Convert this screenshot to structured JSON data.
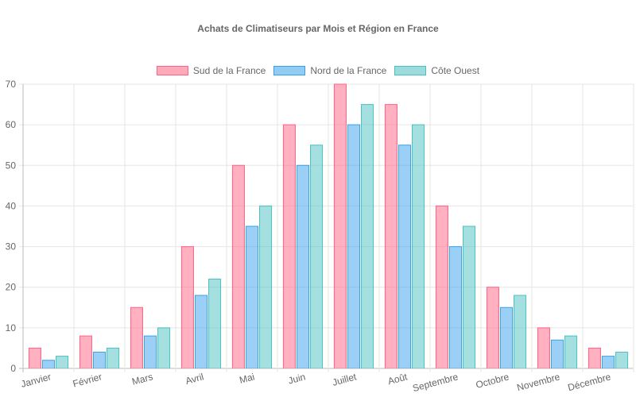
{
  "chart_data": {
    "type": "bar",
    "title": "Achats de Climatiseurs par Mois et Région en France",
    "categories": [
      "Janvier",
      "Février",
      "Mars",
      "Avril",
      "Mai",
      "Juin",
      "Juillet",
      "Août",
      "Septembre",
      "Octobre",
      "Novembre",
      "Décembre"
    ],
    "series": [
      {
        "name": "Sud de la France",
        "color": "#ff6384",
        "values": [
          5,
          8,
          15,
          30,
          50,
          60,
          70,
          65,
          40,
          20,
          10,
          5
        ]
      },
      {
        "name": "Nord de la France",
        "color": "#36a2eb",
        "values": [
          2,
          4,
          8,
          18,
          35,
          50,
          60,
          55,
          30,
          15,
          7,
          3
        ]
      },
      {
        "name": "Côte Ouest",
        "color": "#4bc0c0",
        "values": [
          3,
          5,
          10,
          22,
          40,
          55,
          65,
          60,
          35,
          18,
          8,
          4
        ]
      }
    ],
    "ylim": [
      0,
      70
    ],
    "yticks": [
      0,
      10,
      20,
      30,
      40,
      50,
      60,
      70
    ],
    "xlabel": "",
    "ylabel": "",
    "grid": true,
    "legend_position": "top"
  }
}
